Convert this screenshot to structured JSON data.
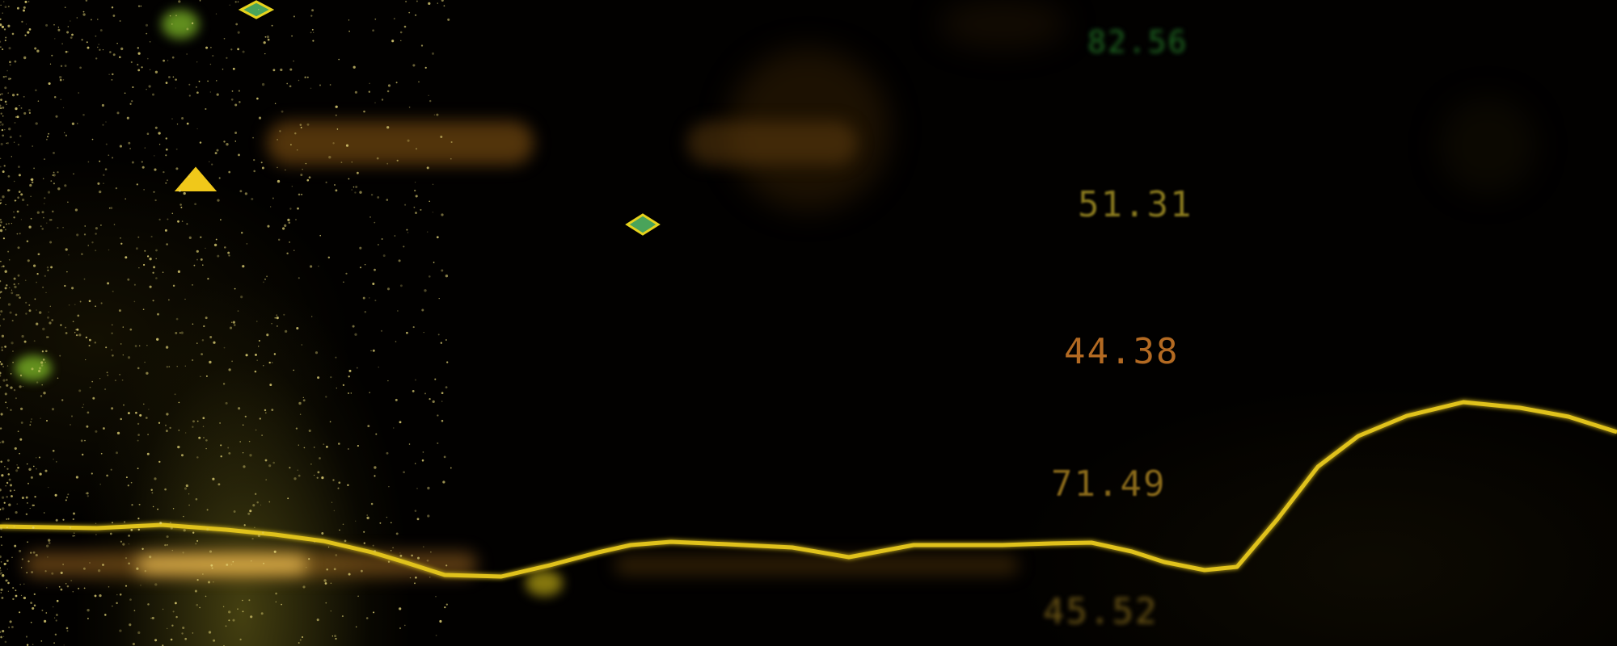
{
  "tickers": [
    {
      "id": "ticker-top",
      "text": "82.56",
      "color": "#1f6a22"
    },
    {
      "id": "ticker-1",
      "text": "51.31",
      "color": "#8a7a1e"
    },
    {
      "id": "ticker-2",
      "text": "44.38",
      "color": "#b36a22"
    },
    {
      "id": "ticker-3",
      "text": "71.49",
      "color": "#8a6a1a"
    },
    {
      "id": "ticker-bottom",
      "text": "45.52",
      "color": "#6a5414"
    }
  ],
  "colors": {
    "line": "#e0c21a",
    "marker_fill": "#4aa35a",
    "marker_stroke": "#e6d21c",
    "glow": "#f4c23a",
    "background": "#020100"
  },
  "markers": [
    {
      "name": "diamond-marker-icon"
    },
    {
      "name": "triangle-marker-icon"
    },
    {
      "name": "diamond-marker-icon"
    }
  ]
}
